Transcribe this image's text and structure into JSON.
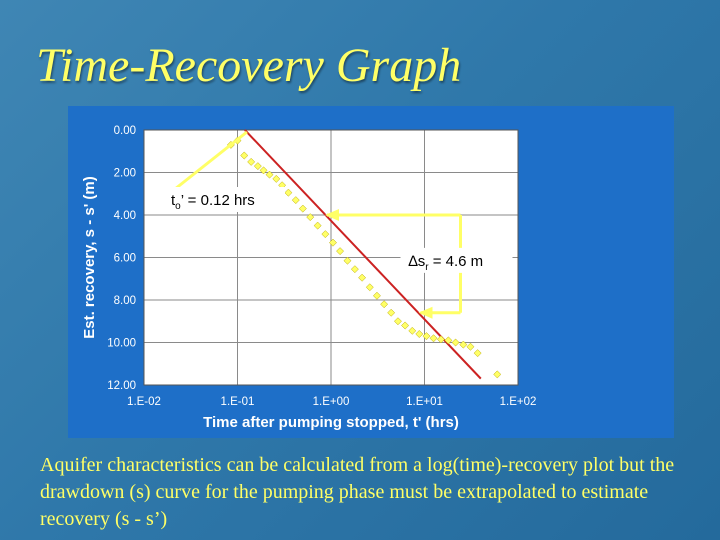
{
  "slide": {
    "title": "Time-Recovery Graph",
    "caption": "Aquifer characteristics can be calculated from a log(time)-recovery plot but the drawdown (s) curve for the pumping phase must be extrapolated to estimate recovery (s - s’)"
  },
  "colors": {
    "background": "#2f78aa",
    "chart_background": "#1e6fc8",
    "plot_area": "#ffffff",
    "title_text": "#ffff66",
    "data_points": "#ffff66",
    "fit_line": "#cc2222",
    "callout": "#ffff66"
  },
  "chart_data": {
    "type": "scatter",
    "xscale": "log",
    "xlim": [
      0.01,
      100
    ],
    "ylim": [
      12,
      0
    ],
    "y_inverted": true,
    "grid": true,
    "xlabel": "Time after pumping stopped, t' (hrs)",
    "ylabel": "Est. recovery, s - s' (m)",
    "x_tick_labels": [
      "1.E-02",
      "1.E-01",
      "1.E+00",
      "1.E+01",
      "1.E+02"
    ],
    "y_tick_labels": [
      "0.00",
      "2.00",
      "4.00",
      "6.00",
      "8.00",
      "10.00",
      "12.00"
    ],
    "series": [
      {
        "kind": "points",
        "x": [
          0.085,
          0.1,
          0.118,
          0.14,
          0.165,
          0.19,
          0.22,
          0.26,
          0.3,
          0.35,
          0.42,
          0.5,
          0.6,
          0.72,
          0.87,
          1.05,
          1.25,
          1.5,
          1.8,
          2.15,
          2.6,
          3.1,
          3.7,
          4.4,
          5.2,
          6.2,
          7.4,
          8.8,
          10.5,
          12.5,
          15,
          18,
          21.5,
          26,
          31,
          37,
          60
        ],
        "y": [
          0.7,
          0.5,
          1.2,
          1.5,
          1.7,
          1.9,
          2.1,
          2.3,
          2.6,
          2.95,
          3.3,
          3.7,
          4.1,
          4.5,
          4.9,
          5.3,
          5.7,
          6.15,
          6.55,
          6.95,
          7.4,
          7.8,
          8.2,
          8.6,
          9.0,
          9.2,
          9.45,
          9.6,
          9.7,
          9.8,
          9.85,
          9.9,
          10.0,
          10.1,
          10.2,
          10.5,
          11.5
        ]
      },
      {
        "kind": "line",
        "x": [
          0.12,
          40
        ],
        "y": [
          0,
          11.7
        ]
      }
    ],
    "annotations": [
      {
        "id": "t0",
        "text_base": "t",
        "text_sub": "o",
        "text_rest": "’ = 0.12 hrs",
        "points_to_x": 0.12,
        "points_to_y": 0
      },
      {
        "id": "delta",
        "symbol": "∆",
        "text_base": "s",
        "text_sub": "r",
        "text_rest": " = 4.6 m",
        "x_from": 1,
        "x_to": 10,
        "y_at_x_from": 4.0,
        "y_at_x_to": 8.6
      }
    ]
  }
}
